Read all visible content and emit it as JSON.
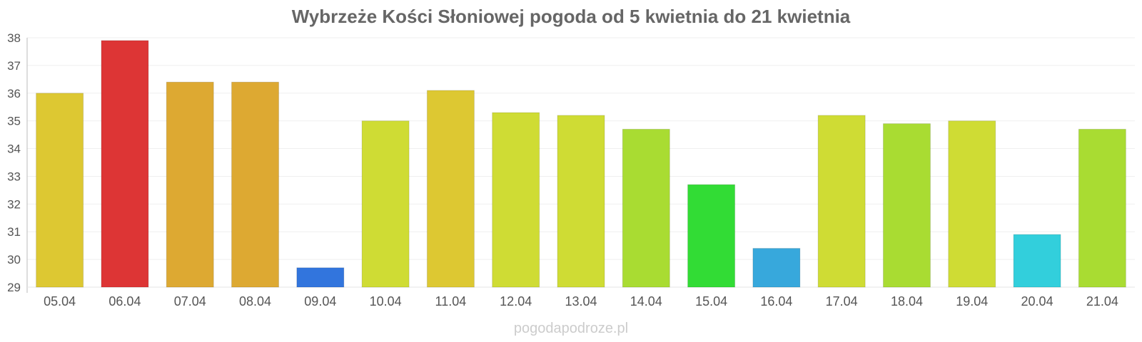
{
  "chart_data": {
    "type": "bar",
    "title": "Wybrzeże Kości Słoniowej pogoda od 5 kwietnia do 21 kwietnia",
    "xlabel": "",
    "ylabel": "",
    "ylim": [
      29,
      38
    ],
    "yticks": [
      29,
      30,
      31,
      32,
      33,
      34,
      35,
      36,
      37,
      38
    ],
    "grid": true,
    "legend": "none",
    "categories": [
      "05.04",
      "06.04",
      "07.04",
      "08.04",
      "09.04",
      "10.04",
      "11.04",
      "12.04",
      "13.04",
      "14.04",
      "15.04",
      "16.04",
      "17.04",
      "18.04",
      "19.04",
      "20.04",
      "21.04"
    ],
    "values": [
      36.0,
      37.9,
      36.4,
      36.4,
      29.7,
      35.0,
      36.1,
      35.3,
      35.2,
      34.7,
      32.7,
      30.4,
      35.2,
      34.9,
      35.0,
      30.9,
      34.7
    ],
    "colors": [
      "#DDC832",
      "#DD3535",
      "#DDA932",
      "#DDA932",
      "#3275DD",
      "#CFDC34",
      "#DDC832",
      "#CFDC34",
      "#CFDC34",
      "#A9DC32",
      "#32DC35",
      "#37A8DC",
      "#CFDC34",
      "#A9DC32",
      "#CFDC34",
      "#32CFDC",
      "#A9DC32"
    ]
  },
  "watermark": "pogodapodroze.pl"
}
